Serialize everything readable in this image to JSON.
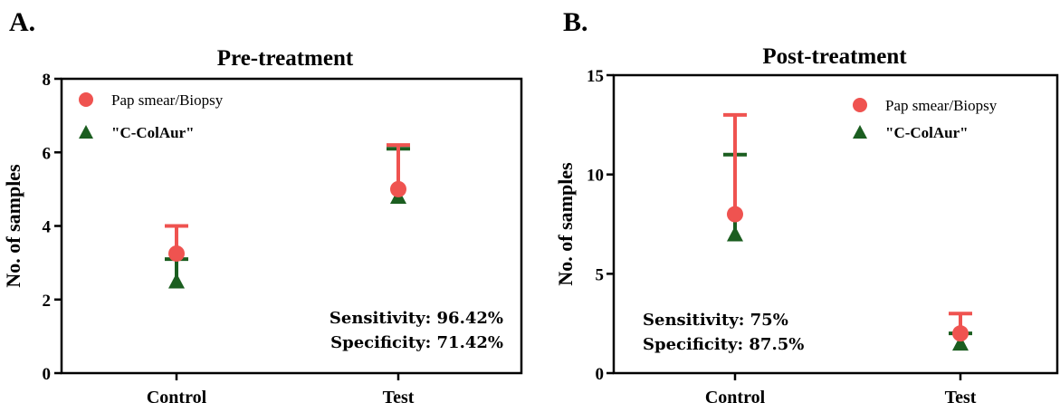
{
  "chart_data": [
    {
      "type": "scatter",
      "panel_label": "A.",
      "title": "Pre-treatment",
      "xlabel": "",
      "ylabel": "No. of samples",
      "categories": [
        "Control",
        "Test"
      ],
      "ylim": [
        0,
        8
      ],
      "yticks": [
        0,
        2,
        4,
        6,
        8
      ],
      "grid": false,
      "legend_position": "top-left",
      "series": [
        {
          "name": "Pap smear/Biopsy",
          "marker": "circle",
          "color": "#ef5350",
          "values": [
            3.25,
            5.0
          ],
          "err_upper": [
            4.0,
            6.2
          ]
        },
        {
          "name": "\"C-ColAur\"",
          "marker": "triangle",
          "color": "#1b5e20",
          "values": [
            2.5,
            4.8
          ],
          "err_upper": [
            3.1,
            6.1
          ]
        }
      ],
      "annotations": [
        "Sensitivity: 96.42%",
        "Specificity: 71.42%"
      ],
      "annotation_position": "bottom-right"
    },
    {
      "type": "scatter",
      "panel_label": "B.",
      "title": "Post-treatment",
      "xlabel": "",
      "ylabel": "No. of samples",
      "categories": [
        "Control",
        "Test"
      ],
      "ylim": [
        0,
        15
      ],
      "yticks": [
        0,
        5,
        10,
        15
      ],
      "grid": false,
      "legend_position": "top-right",
      "series": [
        {
          "name": "Pap smear/Biopsy",
          "marker": "circle",
          "color": "#ef5350",
          "values": [
            8,
            2
          ],
          "err_upper": [
            13,
            3
          ]
        },
        {
          "name": "\"C-ColAur\"",
          "marker": "triangle",
          "color": "#1b5e20",
          "values": [
            7,
            1.5
          ],
          "err_upper": [
            11,
            2
          ]
        }
      ],
      "annotations": [
        "Sensitivity: 75%",
        "Specificity: 87.5%"
      ],
      "annotation_position": "bottom-left"
    }
  ]
}
